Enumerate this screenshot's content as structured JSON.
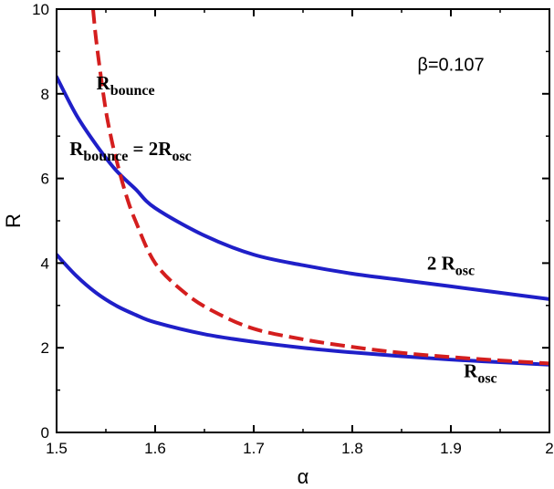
{
  "chart_data": {
    "type": "line",
    "title": "",
    "xlabel": "α",
    "ylabel": "R",
    "xlim": [
      1.5,
      2.0
    ],
    "ylim": [
      0,
      10
    ],
    "x_ticks": [
      "1.5",
      "1.6",
      "1.7",
      "1.8",
      "1.9",
      "2"
    ],
    "y_ticks": [
      "0",
      "2",
      "4",
      "6",
      "8",
      "10"
    ],
    "grid": false,
    "legend": "none",
    "series": [
      {
        "color": "#1f1fc8",
        "style": "solid",
        "x": [
          1.5,
          1.52,
          1.54,
          1.56,
          1.58,
          1.6,
          1.65,
          1.7,
          1.75,
          1.8,
          1.85,
          1.9,
          1.95,
          2.0
        ],
        "y": [
          4.2,
          3.7,
          3.3,
          3.0,
          2.78,
          2.6,
          2.32,
          2.14,
          2.0,
          1.89,
          1.8,
          1.72,
          1.66,
          1.6
        ]
      },
      {
        "color": "#1f1fc8",
        "style": "solid",
        "x": [
          1.5,
          1.52,
          1.54,
          1.56,
          1.58,
          1.6,
          1.65,
          1.7,
          1.75,
          1.8,
          1.85,
          1.9,
          1.95,
          2.0
        ],
        "y": [
          8.4,
          7.5,
          6.8,
          6.2,
          5.75,
          5.3,
          4.65,
          4.2,
          3.95,
          3.75,
          3.6,
          3.45,
          3.3,
          3.15
        ]
      },
      {
        "color": "#d41e1e",
        "style": "dashed",
        "x": [
          1.537,
          1.54,
          1.545,
          1.55,
          1.555,
          1.56,
          1.57,
          1.58,
          1.6,
          1.63,
          1.66,
          1.7,
          1.75,
          1.8,
          1.85,
          1.9,
          1.95,
          2.0
        ],
        "y": [
          10.0,
          9.3,
          8.4,
          7.6,
          7.0,
          6.5,
          5.65,
          5.0,
          4.0,
          3.3,
          2.85,
          2.45,
          2.2,
          2.02,
          1.88,
          1.78,
          1.7,
          1.63
        ]
      }
    ],
    "annotations": [
      {
        "text": "β=0.107",
        "x": 1.9,
        "y": 8.55
      },
      {
        "base": "R",
        "sub": "bounce",
        "x": 1.57,
        "y": 8.1
      },
      {
        "base": "R",
        "sub": "bounce",
        "rest": " = 2R",
        "sub2": "osc",
        "x": 1.575,
        "y": 6.55
      },
      {
        "base": "2 R",
        "sub": "osc",
        "x": 1.9,
        "y": 3.85
      },
      {
        "base": "R",
        "sub": "osc",
        "x": 1.93,
        "y": 1.3
      }
    ]
  }
}
